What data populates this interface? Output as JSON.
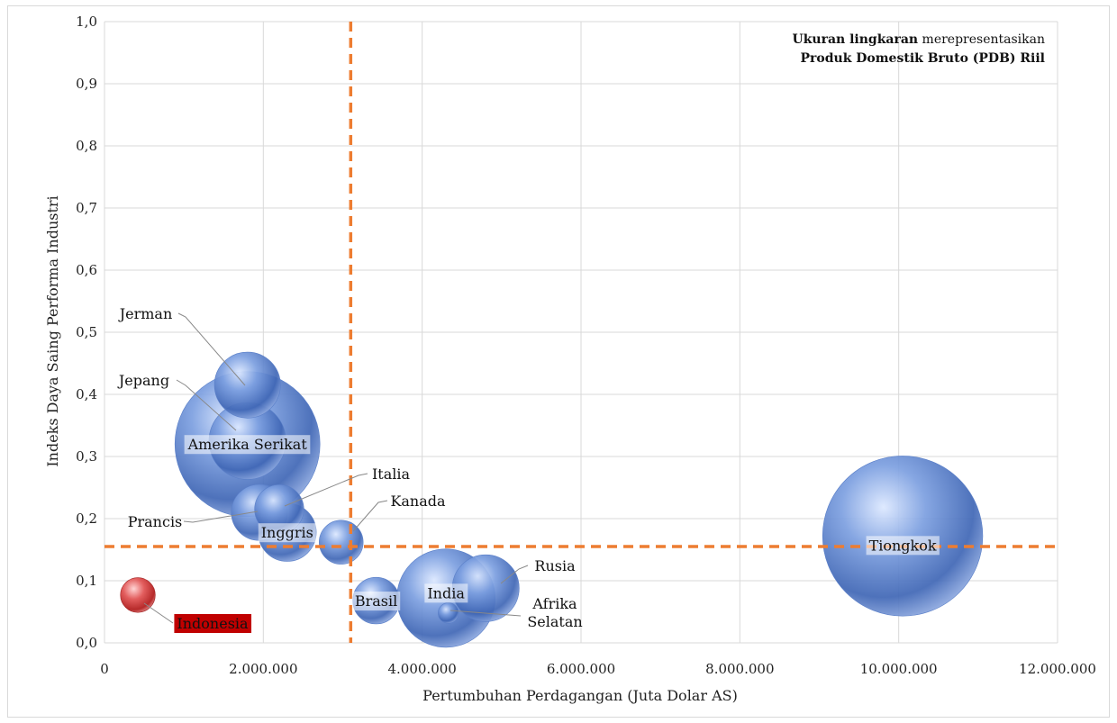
{
  "chart_data": {
    "type": "scatter",
    "subtype": "bubble",
    "title": "",
    "xlabel": "Pertumbuhan Perdagangan (Juta Dolar AS)",
    "ylabel": "Indeks Daya Saing Performa Industri",
    "xlim": [
      0,
      12000000
    ],
    "ylim": [
      0,
      1.0
    ],
    "x_ticks": [
      0,
      2000000,
      4000000,
      6000000,
      8000000,
      10000000,
      12000000
    ],
    "x_tick_labels": [
      "0",
      "2.000.000",
      "4.000.000",
      "6.000.000",
      "8.000.000",
      "10.000.000",
      "12.000.000"
    ],
    "y_ticks": [
      0,
      0.1,
      0.2,
      0.3,
      0.4,
      0.5,
      0.6,
      0.7,
      0.8,
      0.9,
      1.0
    ],
    "y_tick_labels": [
      "0,0",
      "0,1",
      "0,2",
      "0,3",
      "0,4",
      "0,5",
      "0,6",
      "0,7",
      "0,8",
      "0,9",
      "1,0"
    ],
    "grid": true,
    "note": {
      "line1_bold": "Ukuran lingkaran",
      "line1_rest": " merepresentasikan",
      "line2_bold": "Produk Domestik Bruto (PDB) Riil"
    },
    "reference_lines": {
      "x": 3100000,
      "y": 0.155,
      "color": "#ed7d31"
    },
    "colors": {
      "bubble": "#4f78c8",
      "highlight": "#c00000"
    },
    "points": [
      {
        "name": "Amerika Serikat",
        "x": 1800000,
        "y": 0.32,
        "size": 17.4,
        "label_bg": true
      },
      {
        "name": "Jerman",
        "x": 1800000,
        "y": 0.415,
        "size": 3.6,
        "label_bg": false
      },
      {
        "name": "Jepang",
        "x": 1800000,
        "y": 0.325,
        "size": 4.9,
        "label_bg": false
      },
      {
        "name": "Italia",
        "x": 2200000,
        "y": 0.215,
        "size": 2.0,
        "label_bg": false
      },
      {
        "name": "Prancis",
        "x": 1950000,
        "y": 0.21,
        "size": 2.6,
        "label_bg": false
      },
      {
        "name": "Inggris",
        "x": 2300000,
        "y": 0.178,
        "size": 2.8,
        "label_bg": true
      },
      {
        "name": "Kanada",
        "x": 2980000,
        "y": 0.162,
        "size": 1.6,
        "label_bg": false
      },
      {
        "name": "Brasil",
        "x": 3420000,
        "y": 0.068,
        "size": 1.8,
        "label_bg": true
      },
      {
        "name": "India",
        "x": 4300000,
        "y": 0.072,
        "size": 8.0,
        "label_bg": true
      },
      {
        "name": "Afrika Selatan",
        "x": 4330000,
        "y": 0.048,
        "size": 0.35,
        "label_bg": false
      },
      {
        "name": "Rusia",
        "x": 4800000,
        "y": 0.088,
        "size": 3.7,
        "label_bg": false
      },
      {
        "name": "Tiongkok",
        "x": 10050000,
        "y": 0.172,
        "size": 21.2,
        "label_bg": true
      },
      {
        "name": "Indonesia",
        "x": 420000,
        "y": 0.077,
        "size": 1.0,
        "label_bg": "red",
        "highlight": true
      }
    ]
  }
}
